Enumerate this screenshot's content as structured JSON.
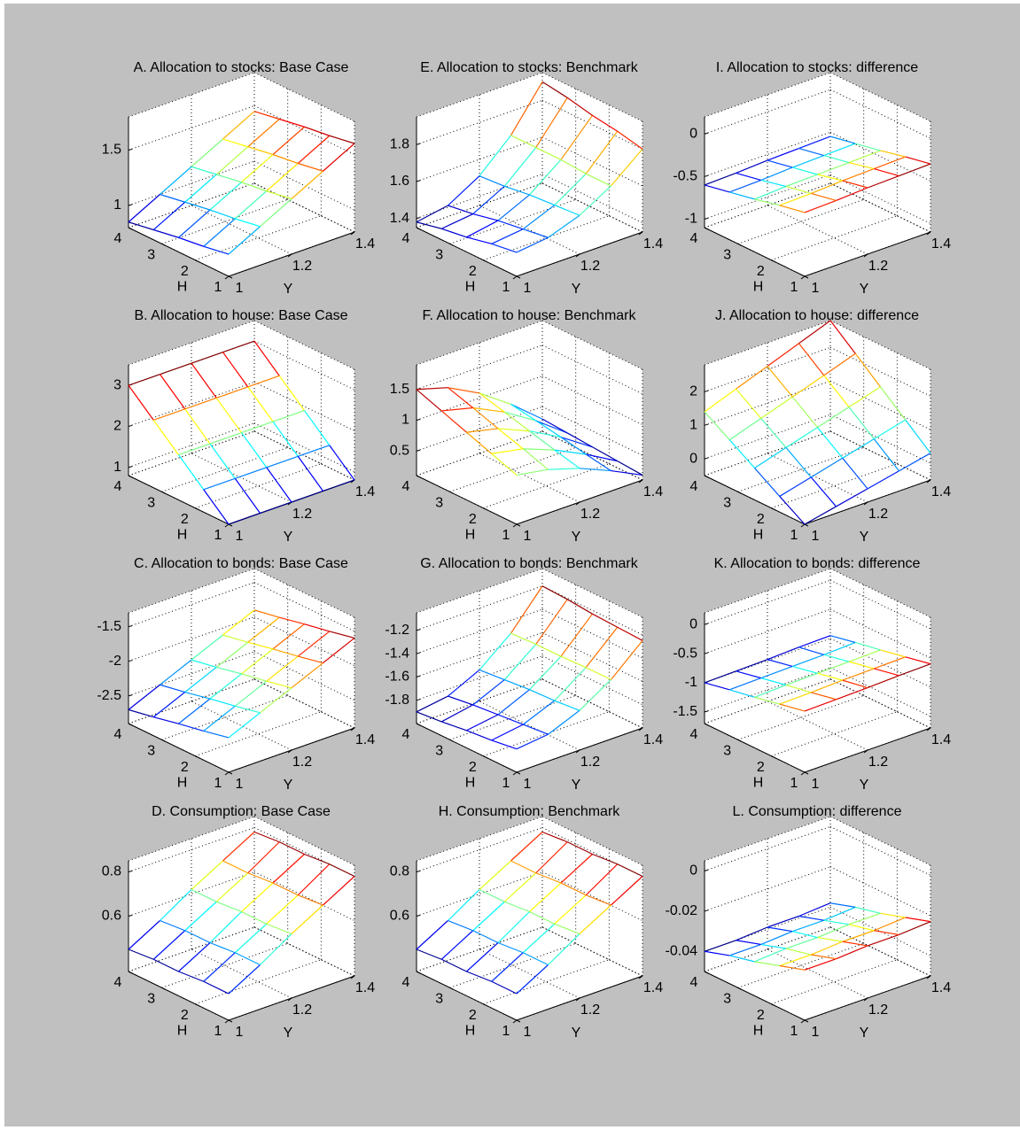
{
  "chart_data": [
    {
      "type": "surface",
      "title": "A. Allocation to stocks: Base Case",
      "xlabel": "Y",
      "ylabel": "H",
      "x": [
        1,
        1.1,
        1.2,
        1.3,
        1.4
      ],
      "y": [
        1,
        1.75,
        2.5,
        3.25,
        4
      ],
      "z": [
        [
          1.0,
          1.15,
          1.3,
          1.45,
          1.6
        ],
        [
          0.96,
          1.11,
          1.26,
          1.41,
          1.56
        ],
        [
          0.93,
          1.08,
          1.23,
          1.38,
          1.53
        ],
        [
          0.89,
          1.04,
          1.19,
          1.34,
          1.49
        ],
        [
          0.85,
          1.0,
          1.15,
          1.3,
          1.45
        ]
      ],
      "xlim": [
        1,
        1.4
      ],
      "ylim": [
        1,
        4
      ],
      "zlim": [
        0.8,
        1.8
      ],
      "xticks": [
        1,
        1.2,
        1.4
      ],
      "yticks": [
        1,
        2,
        3,
        4
      ],
      "zticks": [
        1,
        1.5
      ],
      "grid": true
    },
    {
      "type": "surface",
      "title": "B. Allocation to house: Base Case",
      "xlabel": "Y",
      "ylabel": "H",
      "x": [
        1,
        1.1,
        1.2,
        1.3,
        1.4
      ],
      "y": [
        1,
        1.75,
        2.5,
        3.25,
        4
      ],
      "z": [
        [
          0.8,
          0.8,
          0.8,
          0.8,
          0.8
        ],
        [
          1.35,
          1.35,
          1.35,
          1.35,
          1.35
        ],
        [
          1.9,
          1.9,
          1.9,
          1.9,
          1.9
        ],
        [
          2.45,
          2.45,
          2.45,
          2.45,
          2.45
        ],
        [
          3.0,
          3.0,
          3.0,
          3.0,
          3.0
        ]
      ],
      "xlim": [
        1,
        1.4
      ],
      "ylim": [
        1,
        4
      ],
      "zlim": [
        0.8,
        3.5
      ],
      "xticks": [
        1,
        1.2,
        1.4
      ],
      "yticks": [
        1,
        2,
        3,
        4
      ],
      "zticks": [
        1,
        2,
        3
      ],
      "grid": true
    },
    {
      "type": "surface",
      "title": "C. Allocation to bonds: Base Case",
      "xlabel": "Y",
      "ylabel": "H",
      "x": [
        1,
        1.1,
        1.2,
        1.3,
        1.4
      ],
      "y": [
        1,
        1.75,
        2.5,
        3.25,
        4
      ],
      "z": [
        [
          -2.4,
          -2.2,
          -2.0,
          -1.8,
          -1.6
        ],
        [
          -2.48,
          -2.28,
          -2.08,
          -1.88,
          -1.68
        ],
        [
          -2.55,
          -2.35,
          -2.15,
          -1.95,
          -1.75
        ],
        [
          -2.63,
          -2.43,
          -2.23,
          -2.03,
          -1.83
        ],
        [
          -2.7,
          -2.5,
          -2.3,
          -2.1,
          -1.9
        ]
      ],
      "xlim": [
        1,
        1.4
      ],
      "ylim": [
        1,
        4
      ],
      "zlim": [
        -2.9,
        -1.3
      ],
      "xticks": [
        1,
        1.2,
        1.4
      ],
      "yticks": [
        1,
        2,
        3,
        4
      ],
      "zticks": [
        -2.5,
        -2,
        -1.5
      ],
      "grid": true
    },
    {
      "type": "surface",
      "title": "D. Consumption: Base Case",
      "xlabel": "Y",
      "ylabel": "H",
      "x": [
        1,
        1.1,
        1.2,
        1.3,
        1.4
      ],
      "y": [
        1,
        1.75,
        2.5,
        3.25,
        4
      ],
      "z": [
        [
          0.47,
          0.55,
          0.64,
          0.72,
          0.8
        ],
        [
          0.47,
          0.55,
          0.63,
          0.71,
          0.8
        ],
        [
          0.46,
          0.54,
          0.63,
          0.71,
          0.79
        ],
        [
          0.46,
          0.54,
          0.62,
          0.7,
          0.79
        ],
        [
          0.45,
          0.53,
          0.62,
          0.7,
          0.78
        ]
      ],
      "xlim": [
        1,
        1.4
      ],
      "ylim": [
        1,
        4
      ],
      "zlim": [
        0.35,
        0.85
      ],
      "xticks": [
        1,
        1.2,
        1.4
      ],
      "yticks": [
        1,
        2,
        3,
        4
      ],
      "zticks": [
        0.6,
        0.8
      ],
      "grid": true
    },
    {
      "type": "surface",
      "title": "E. Allocation to stocks: Benchmark",
      "xlabel": "Y",
      "ylabel": "H",
      "x": [
        1,
        1.1,
        1.2,
        1.3,
        1.4
      ],
      "y": [
        1,
        1.75,
        2.5,
        3.25,
        4
      ],
      "z": [
        [
          1.48,
          1.5,
          1.56,
          1.66,
          1.8
        ],
        [
          1.46,
          1.48,
          1.55,
          1.66,
          1.83
        ],
        [
          1.43,
          1.46,
          1.54,
          1.67,
          1.85
        ],
        [
          1.41,
          1.43,
          1.52,
          1.67,
          1.88
        ],
        [
          1.38,
          1.41,
          1.51,
          1.67,
          1.9
        ]
      ],
      "xlim": [
        1,
        1.4
      ],
      "ylim": [
        1,
        4
      ],
      "zlim": [
        1.35,
        1.95
      ],
      "xticks": [
        1,
        1.2,
        1.4
      ],
      "yticks": [
        1,
        2,
        3,
        4
      ],
      "zticks": [
        1.4,
        1.6,
        1.8
      ],
      "grid": true
    },
    {
      "type": "surface",
      "title": "F. Allocation to house: Benchmark",
      "xlabel": "Y",
      "ylabel": "H",
      "x": [
        1,
        1.1,
        1.2,
        1.3,
        1.4
      ],
      "y": [
        1,
        1.75,
        2.5,
        3.25,
        4
      ],
      "z": [
        [
          0.9,
          0.81,
          0.65,
          0.43,
          0.18
        ],
        [
          1.05,
          0.95,
          0.75,
          0.5,
          0.21
        ],
        [
          1.2,
          1.08,
          0.86,
          0.58,
          0.24
        ],
        [
          1.35,
          1.22,
          0.97,
          0.65,
          0.27
        ],
        [
          1.5,
          1.35,
          1.08,
          0.72,
          0.3
        ]
      ],
      "xlim": [
        1,
        1.4
      ],
      "ylim": [
        1,
        4
      ],
      "zlim": [
        0.1,
        1.9
      ],
      "xticks": [
        1,
        1.2,
        1.4
      ],
      "yticks": [
        1,
        2,
        3,
        4
      ],
      "zticks": [
        0.5,
        1,
        1.5
      ],
      "grid": true
    },
    {
      "type": "surface",
      "title": "G. Allocation to bonds: Benchmark",
      "xlabel": "Y",
      "ylabel": "H",
      "x": [
        1,
        1.1,
        1.2,
        1.3,
        1.4
      ],
      "y": [
        1,
        1.75,
        2.5,
        3.25,
        4
      ],
      "z": [
        [
          -1.8,
          -1.77,
          -1.66,
          -1.49,
          -1.25
        ],
        [
          -1.83,
          -1.79,
          -1.68,
          -1.49,
          -1.24
        ],
        [
          -1.85,
          -1.81,
          -1.69,
          -1.5,
          -1.23
        ],
        [
          -1.88,
          -1.83,
          -1.71,
          -1.5,
          -1.21
        ],
        [
          -1.9,
          -1.86,
          -1.73,
          -1.51,
          -1.2
        ]
      ],
      "xlim": [
        1,
        1.4
      ],
      "ylim": [
        1,
        4
      ],
      "zlim": [
        -2,
        -1.05
      ],
      "xticks": [
        1,
        1.2,
        1.4
      ],
      "yticks": [
        1,
        2,
        3,
        4
      ],
      "zticks": [
        -1.8,
        -1.6,
        -1.4,
        -1.2
      ],
      "grid": true
    },
    {
      "type": "surface",
      "title": "H. Consumption: Benchmark",
      "xlabel": "Y",
      "ylabel": "H",
      "x": [
        1,
        1.1,
        1.2,
        1.3,
        1.4
      ],
      "y": [
        1,
        1.75,
        2.5,
        3.25,
        4
      ],
      "z": [
        [
          0.47,
          0.55,
          0.64,
          0.72,
          0.8
        ],
        [
          0.47,
          0.55,
          0.63,
          0.71,
          0.8
        ],
        [
          0.46,
          0.54,
          0.63,
          0.71,
          0.79
        ],
        [
          0.46,
          0.54,
          0.62,
          0.7,
          0.79
        ],
        [
          0.45,
          0.53,
          0.62,
          0.7,
          0.78
        ]
      ],
      "xlim": [
        1,
        1.4
      ],
      "ylim": [
        1,
        4
      ],
      "zlim": [
        0.35,
        0.85
      ],
      "xticks": [
        1,
        1.2,
        1.4
      ],
      "yticks": [
        1,
        2,
        3,
        4
      ],
      "zticks": [
        0.6,
        0.8
      ],
      "grid": true
    },
    {
      "type": "surface",
      "title": "I. Allocation to stocks: difference",
      "xlabel": "Y",
      "ylabel": "H",
      "x": [
        1,
        1.1,
        1.2,
        1.3,
        1.4
      ],
      "y": [
        1,
        1.75,
        2.5,
        3.25,
        4
      ],
      "z": [
        [
          -0.35,
          -0.34,
          -0.32,
          -0.31,
          -0.3
        ],
        [
          -0.41,
          -0.4,
          -0.38,
          -0.37,
          -0.36
        ],
        [
          -0.48,
          -0.46,
          -0.45,
          -0.44,
          -0.43
        ],
        [
          -0.54,
          -0.53,
          -0.51,
          -0.5,
          -0.49
        ],
        [
          -0.6,
          -0.59,
          -0.57,
          -0.56,
          -0.55
        ]
      ],
      "xlim": [
        1,
        1.4
      ],
      "ylim": [
        1,
        4
      ],
      "zlim": [
        -1.1,
        0.2
      ],
      "xticks": [
        1,
        1.2,
        1.4
      ],
      "yticks": [
        1,
        2,
        3,
        4
      ],
      "zticks": [
        -1,
        -0.5,
        0
      ],
      "grid": true
    },
    {
      "type": "surface",
      "title": "J. Allocation to house: difference",
      "xlabel": "Y",
      "ylabel": "H",
      "x": [
        1,
        1.1,
        1.2,
        1.3,
        1.4
      ],
      "y": [
        1,
        1.75,
        2.5,
        3.25,
        4
      ],
      "z": [
        [
          -0.5,
          -0.3,
          -0.1,
          0.1,
          0.3
        ],
        [
          -0.03,
          0.21,
          0.45,
          0.69,
          0.93
        ],
        [
          0.45,
          0.73,
          1.0,
          1.28,
          1.55
        ],
        [
          0.93,
          1.24,
          1.55,
          1.86,
          2.18
        ],
        [
          1.4,
          1.75,
          2.1,
          2.45,
          2.8
        ]
      ],
      "xlim": [
        1,
        1.4
      ],
      "ylim": [
        1,
        4
      ],
      "zlim": [
        -0.5,
        2.8
      ],
      "xticks": [
        1,
        1.2,
        1.4
      ],
      "yticks": [
        1,
        2,
        3,
        4
      ],
      "zticks": [
        0,
        1,
        2
      ],
      "grid": true
    },
    {
      "type": "surface",
      "title": "K. Allocation to bonds: difference",
      "xlabel": "Y",
      "ylabel": "H",
      "x": [
        1,
        1.1,
        1.2,
        1.3,
        1.4
      ],
      "y": [
        1,
        1.75,
        2.5,
        3.25,
        4
      ],
      "z": [
        [
          -0.65,
          -0.64,
          -0.63,
          -0.61,
          -0.6
        ],
        [
          -0.74,
          -0.73,
          -0.71,
          -0.7,
          -0.69
        ],
        [
          -0.83,
          -0.81,
          -0.8,
          -0.79,
          -0.78
        ],
        [
          -0.91,
          -0.9,
          -0.89,
          -0.88,
          -0.86
        ],
        [
          -1.0,
          -0.99,
          -0.98,
          -0.96,
          -0.95
        ]
      ],
      "xlim": [
        1,
        1.4
      ],
      "ylim": [
        1,
        4
      ],
      "zlim": [
        -1.7,
        0.2
      ],
      "xticks": [
        1,
        1.2,
        1.4
      ],
      "yticks": [
        1,
        2,
        3,
        4
      ],
      "zticks": [
        -1.5,
        -1,
        -0.5,
        0
      ],
      "grid": true
    },
    {
      "type": "surface",
      "title": "L. Consumption: difference",
      "xlabel": "Y",
      "ylabel": "H",
      "x": [
        1,
        1.1,
        1.2,
        1.3,
        1.4
      ],
      "y": [
        1,
        1.75,
        2.5,
        3.25,
        4
      ],
      "z": [
        [
          -0.025,
          -0.025,
          -0.024,
          -0.024,
          -0.023
        ],
        [
          -0.029,
          -0.029,
          -0.028,
          -0.028,
          -0.027
        ],
        [
          -0.033,
          -0.032,
          -0.032,
          -0.031,
          -0.031
        ],
        [
          -0.036,
          -0.036,
          -0.035,
          -0.035,
          -0.034
        ],
        [
          -0.04,
          -0.04,
          -0.039,
          -0.039,
          -0.038
        ]
      ],
      "xlim": [
        1,
        1.4
      ],
      "ylim": [
        1,
        4
      ],
      "zlim": [
        -0.05,
        0.005
      ],
      "xticks": [
        1,
        1.2,
        1.4
      ],
      "yticks": [
        1,
        2,
        3,
        4
      ],
      "zticks": [
        -0.04,
        -0.02,
        0
      ],
      "grid": true
    }
  ]
}
